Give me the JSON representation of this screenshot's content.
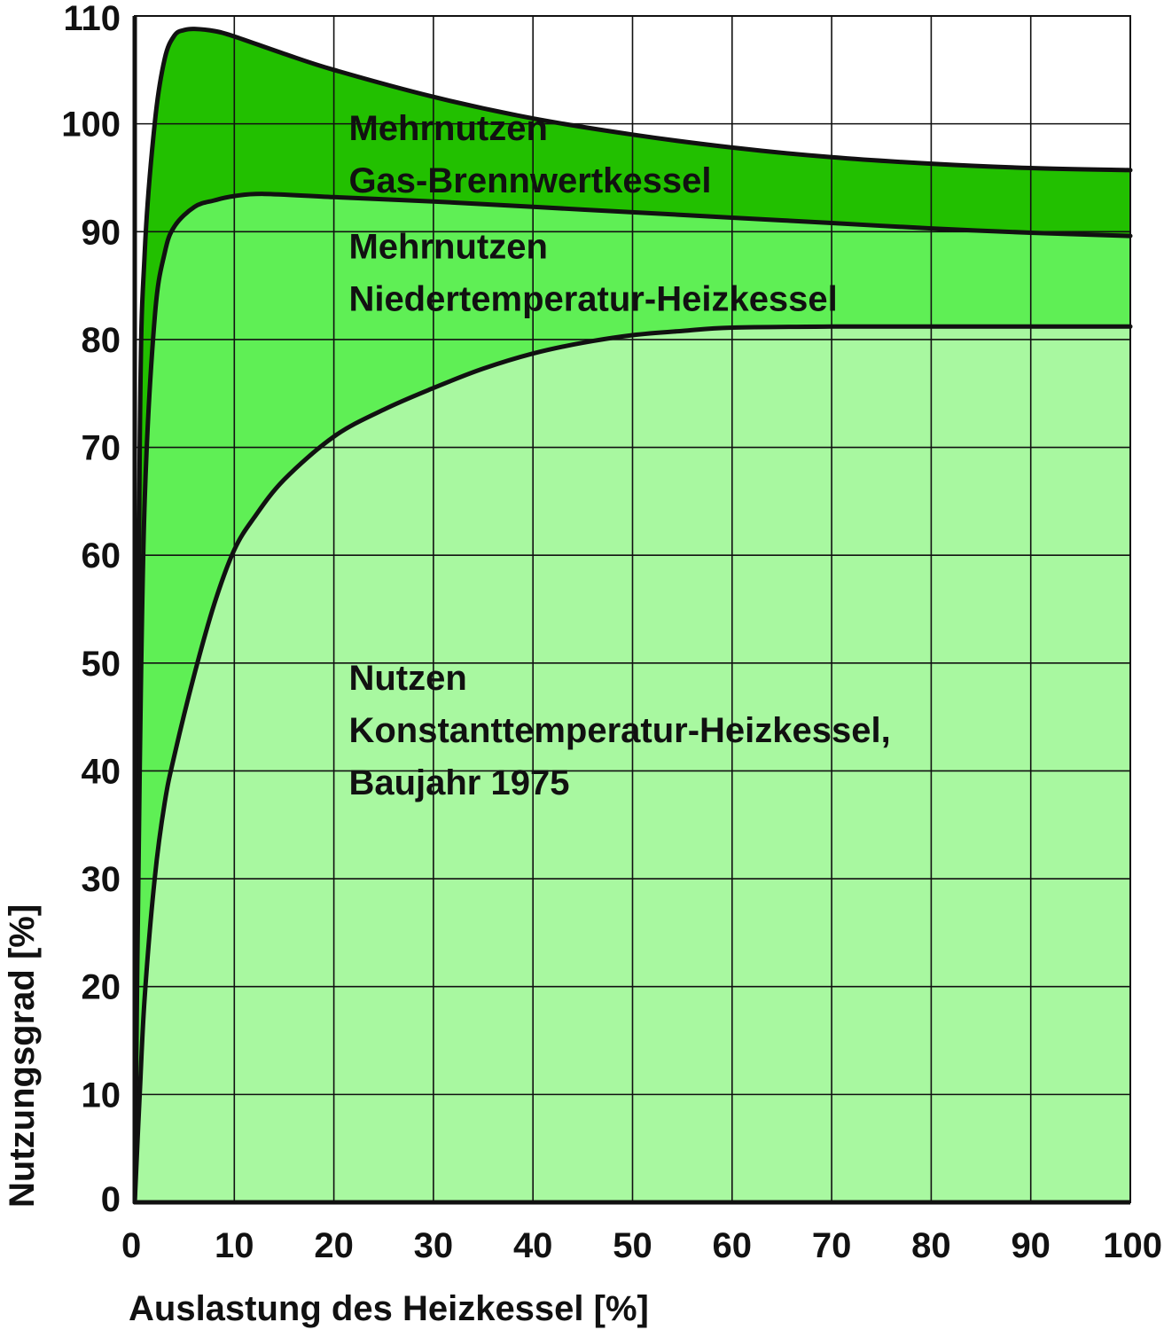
{
  "chart_data": {
    "type": "area",
    "xlabel": "Auslastung des Heizkessel [%]",
    "ylabel": "Nutzungsgrad [%]",
    "xlim": [
      0,
      100
    ],
    "ylim": [
      0,
      110
    ],
    "x_ticks": [
      0,
      10,
      20,
      30,
      40,
      50,
      60,
      70,
      80,
      90,
      100
    ],
    "y_ticks": [
      0,
      10,
      20,
      30,
      40,
      50,
      60,
      70,
      80,
      90,
      100,
      110
    ],
    "grid": true,
    "colors": {
      "gas_brennwert": "#22c000",
      "niedertemperatur": "#5fef55",
      "konstanttemperatur": "#a8f8a0",
      "line": "#111111",
      "grid": "#111111"
    },
    "series": [
      {
        "x": [
          0,
          0.5,
          1,
          2,
          3,
          4,
          5,
          6,
          8,
          10,
          15,
          20,
          30,
          40,
          50,
          60,
          70,
          80,
          90,
          100
        ],
        "y": [
          0,
          70,
          88,
          100,
          106,
          108.2,
          108.7,
          108.8,
          108.6,
          108.1,
          106.5,
          105,
          102.5,
          100.5,
          99,
          97.8,
          96.9,
          96.3,
          95.9,
          95.7
        ]
      },
      {
        "x": [
          0,
          0.5,
          1,
          2,
          3,
          4,
          6,
          8,
          10,
          13,
          20,
          30,
          40,
          50,
          60,
          70,
          80,
          90,
          100
        ],
        "y": [
          0,
          40,
          65,
          82,
          88,
          90.5,
          92.3,
          92.9,
          93.3,
          93.5,
          93.2,
          92.8,
          92.3,
          91.8,
          91.3,
          90.8,
          90.3,
          89.9,
          89.6
        ]
      },
      {
        "x": [
          0,
          0.5,
          1,
          2,
          3,
          4,
          6,
          8,
          10,
          12,
          15,
          20,
          25,
          30,
          35,
          40,
          45,
          50,
          55,
          60,
          70,
          80,
          90,
          100
        ],
        "y": [
          0,
          10,
          19,
          30,
          37,
          41.5,
          49,
          55.5,
          60.5,
          63.5,
          67,
          71,
          73.5,
          75.5,
          77.3,
          78.7,
          79.7,
          80.4,
          80.8,
          81.1,
          81.2,
          81.2,
          81.2,
          81.2
        ]
      }
    ],
    "annotations": [
      {
        "lines": [
          "Mehrnutzen",
          "Gas-Brennwertkessel"
        ],
        "x": 21.5,
        "y": 98.5
      },
      {
        "lines": [
          "Mehrnutzen",
          "Niedertemperatur-Heizkessel"
        ],
        "x": 21.5,
        "y": 87.5
      },
      {
        "lines": [
          "Nutzen",
          "Konstanttemperatur-Heizkessel,",
          "Baujahr 1975"
        ],
        "x": 21.5,
        "y": 47.5
      }
    ]
  }
}
